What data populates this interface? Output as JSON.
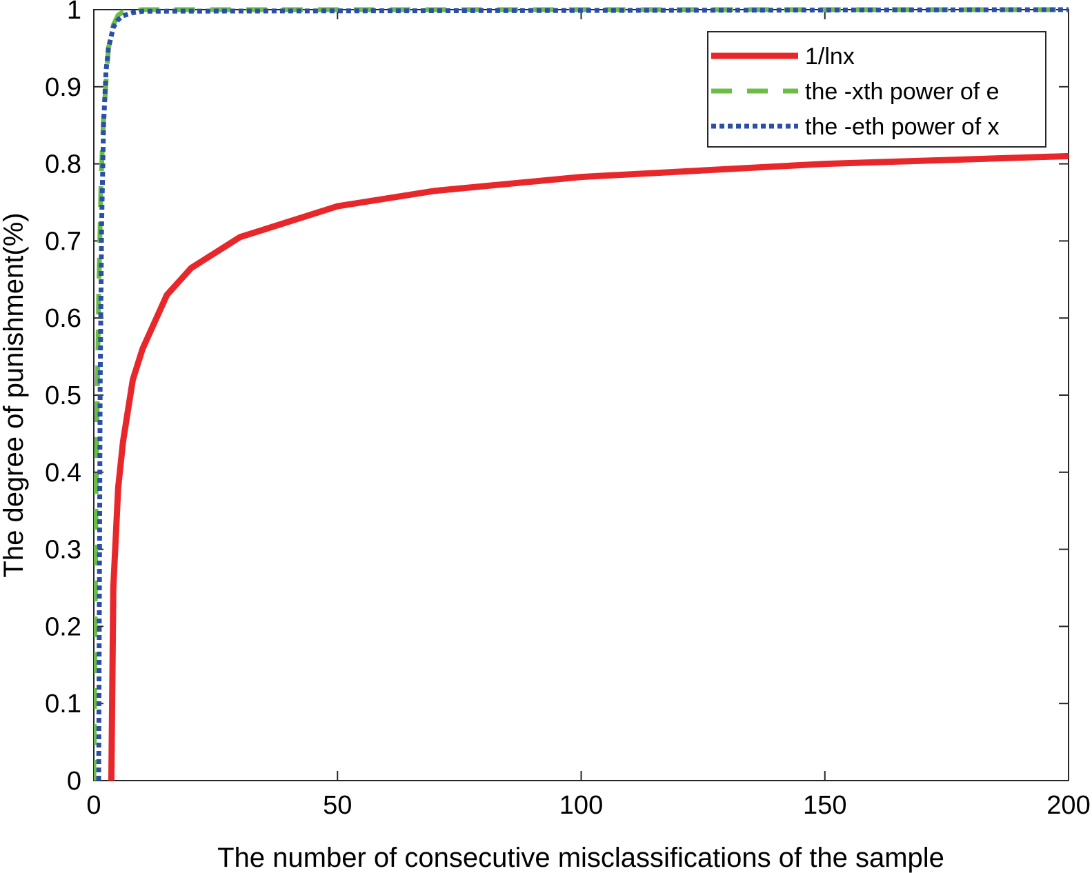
{
  "chart_data": {
    "type": "line",
    "title": "",
    "xlabel": "The number of consecutive misclassifications of the sample",
    "ylabel": "The degree of punishment(%)",
    "xlim": [
      0,
      200
    ],
    "ylim": [
      0,
      1
    ],
    "xticks": [
      0,
      50,
      100,
      150,
      200
    ],
    "xtick_labels": [
      "0",
      "50",
      "100",
      "150",
      "200"
    ],
    "yticks": [
      0,
      0.1,
      0.2,
      0.3,
      0.4,
      0.5,
      0.6,
      0.7,
      0.8,
      0.9,
      1
    ],
    "ytick_labels": [
      "0",
      "0.1",
      "0.2",
      "0.3",
      "0.4",
      "0.5",
      "0.6",
      "0.7",
      "0.8",
      "0.9",
      "1"
    ],
    "grid": false,
    "legend_position": "top-right",
    "series": [
      {
        "name": "1/lnx",
        "color": "#e8272b",
        "style": "solid",
        "x": [
          3.6,
          4,
          5,
          6,
          8,
          10,
          15,
          20,
          30,
          50,
          70,
          100,
          150,
          200
        ],
        "y": [
          0.0,
          0.25,
          0.38,
          0.44,
          0.52,
          0.56,
          0.63,
          0.665,
          0.705,
          0.745,
          0.765,
          0.783,
          0.8,
          0.81
        ]
      },
      {
        "name": "the -xth power of e",
        "color": "#6abd45",
        "style": "dashed",
        "x": [
          0,
          0.5,
          1,
          1.5,
          2,
          3,
          4,
          5,
          6,
          8,
          10,
          200
        ],
        "y": [
          0.0,
          0.39,
          0.63,
          0.78,
          0.86,
          0.95,
          0.98,
          0.993,
          0.997,
          0.999,
          1.0,
          1.0
        ]
      },
      {
        "name": "the -eth power of x",
        "color": "#2b4fa8",
        "style": "dotted",
        "x": [
          1,
          1.3,
          1.6,
          2,
          2.5,
          3,
          4,
          5,
          6,
          8,
          10,
          200
        ],
        "y": [
          0.0,
          0.51,
          0.72,
          0.85,
          0.92,
          0.95,
          0.977,
          0.987,
          0.992,
          0.996,
          0.998,
          1.0
        ]
      }
    ]
  }
}
